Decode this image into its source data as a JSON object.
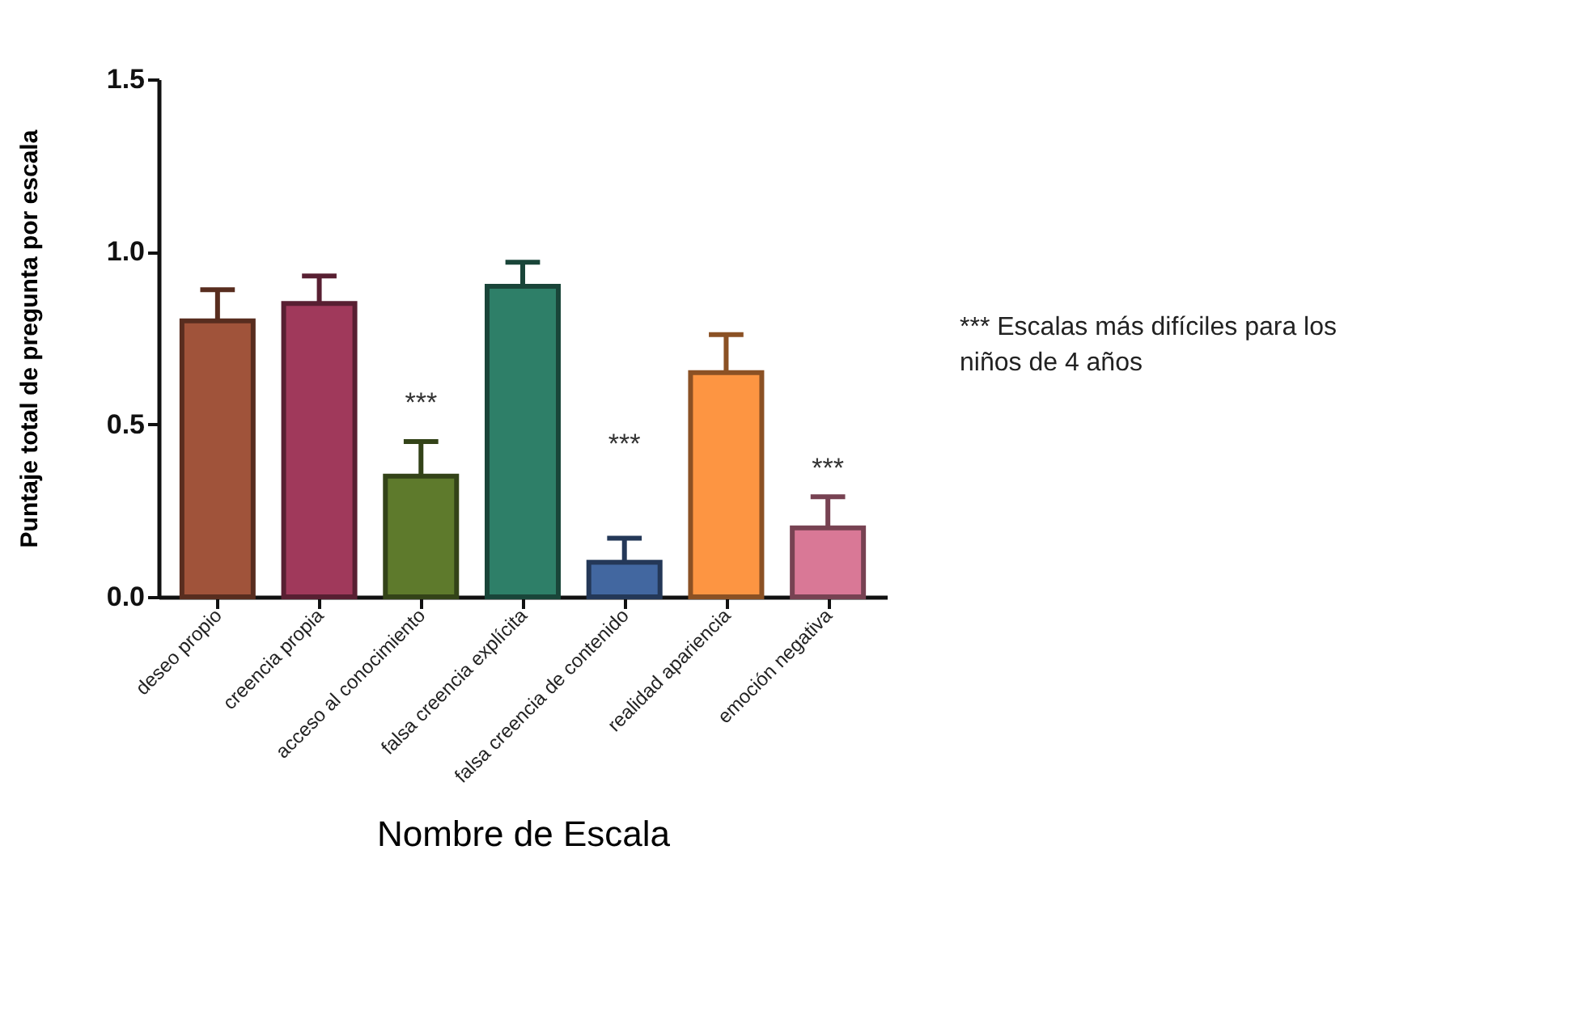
{
  "chart_data": {
    "type": "bar",
    "xlabel": "Nombre de Escala",
    "ylabel": "Puntaje total de pregunta por escala",
    "categories": [
      "deseo propio",
      "creencia propia",
      "acceso al conocimiento",
      "falsa creencia explícita",
      "falsa creencia de contenido",
      "realidad apariencia",
      "emoción negativa"
    ],
    "values": [
      0.8,
      0.85,
      0.35,
      0.9,
      0.1,
      0.65,
      0.2
    ],
    "colors": [
      "#a0533a",
      "#a0395b",
      "#5e7a2c",
      "#2e7f68",
      "#4267a0",
      "#fd9542",
      "#d97896"
    ],
    "errors": [
      [
        0.8,
        0.89
      ],
      [
        0.85,
        0.93
      ],
      [
        0.35,
        0.45
      ],
      [
        0.9,
        0.97
      ],
      [
        0.1,
        0.17
      ],
      [
        0.65,
        0.76
      ],
      [
        0.2,
        0.29
      ]
    ],
    "ylim": [
      0,
      1.5
    ],
    "yticks": [
      {
        "value": 0,
        "label": "0.0"
      },
      {
        "value": 0.5,
        "label": "0.5"
      },
      {
        "value": 1,
        "label": "1.0"
      },
      {
        "value": 1.5,
        "label": "1.5"
      }
    ],
    "annotations": [
      "***",
      "***",
      "***",
      "*** Escalas más difíciles para los niños de 4 años"
    ],
    "grid": false
  }
}
